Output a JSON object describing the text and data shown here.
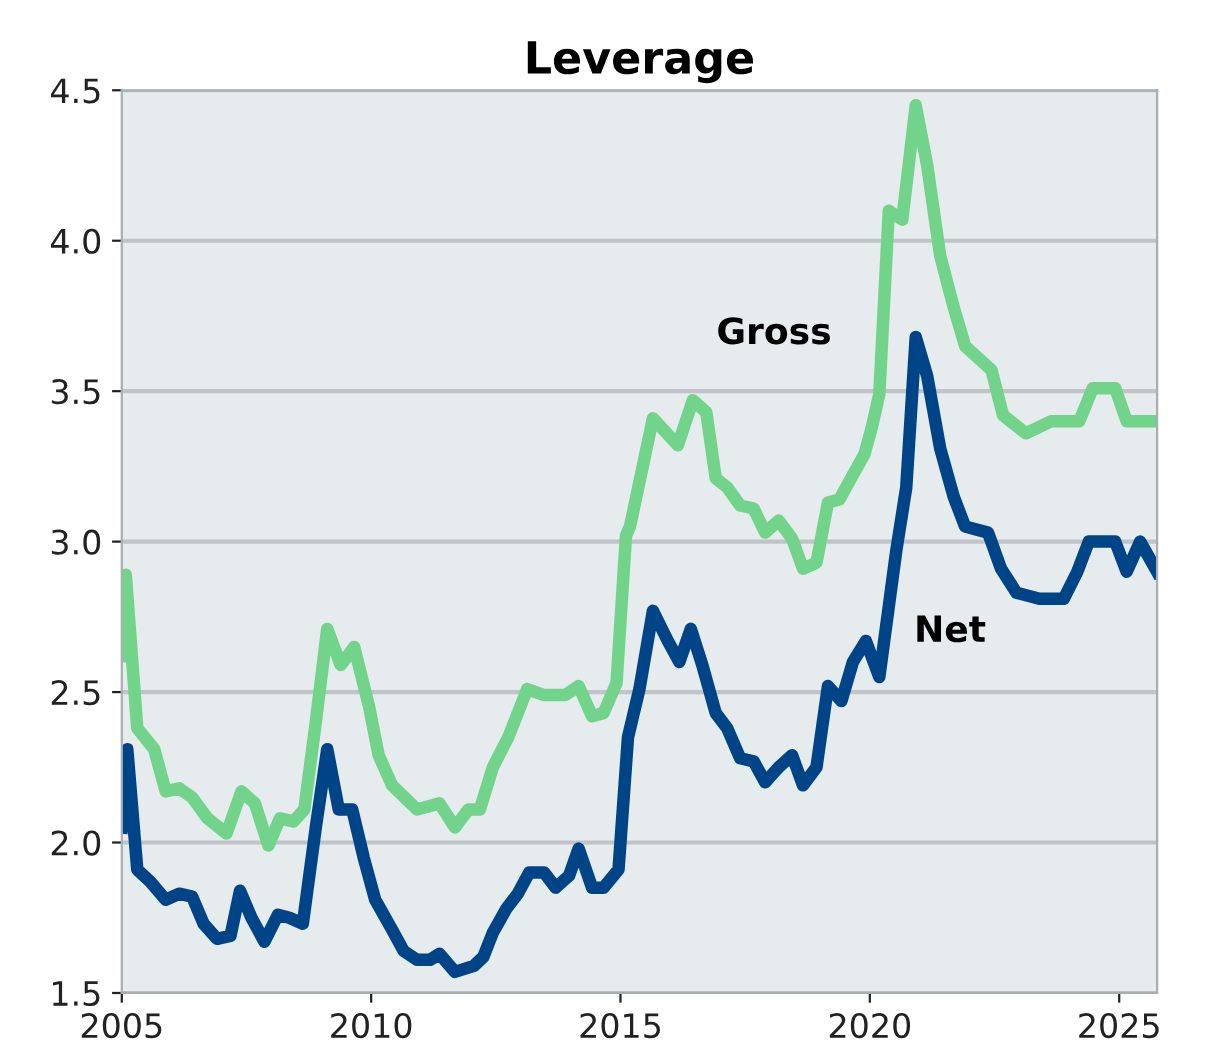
{
  "chart_data": {
    "type": "line",
    "title": "Leverage",
    "xlim": [
      2005,
      2025.76
    ],
    "xticks": [
      2005,
      2010,
      2015,
      2020,
      2025
    ],
    "ylim": [
      1.5,
      4.5
    ],
    "yticks": [
      1.5,
      {
        "value": 2,
        "label": "2.0"
      },
      2.5,
      {
        "value": 3,
        "label": "3.0"
      },
      3.5,
      {
        "value": 4,
        "label": "4.0"
      },
      4.5
    ],
    "grid": "y",
    "legend": false,
    "marker": "none",
    "line_style": "solid",
    "series": [
      {
        "name": "Gross",
        "color": "#72d48a",
        "x": [
          2005.0,
          2005.08,
          2005.31,
          2005.65,
          2005.88,
          2006.15,
          2006.41,
          2006.72,
          2007.1,
          2007.4,
          2007.67,
          2007.94,
          2008.17,
          2008.44,
          2008.66,
          2008.89,
          2009.12,
          2009.39,
          2009.66,
          2009.96,
          2010.15,
          2010.42,
          2010.92,
          2011.37,
          2011.68,
          2011.95,
          2012.18,
          2012.44,
          2012.75,
          2013.13,
          2013.47,
          2013.89,
          2014.16,
          2014.43,
          2014.66,
          2014.92,
          2015.11,
          2015.19,
          2015.65,
          2016.15,
          2016.45,
          2016.72,
          2016.91,
          2017.14,
          2017.4,
          2017.67,
          2017.9,
          2018.17,
          2018.44,
          2018.66,
          2018.93,
          2019.16,
          2019.39,
          2019.62,
          2019.89,
          2020.04,
          2020.19,
          2020.38,
          2020.65,
          2020.92,
          2021.15,
          2021.41,
          2021.68,
          2021.91,
          2022.44,
          2022.67,
          2023.13,
          2023.63,
          2024.2,
          2024.47,
          2024.92,
          2025.15,
          2025.76
        ],
        "values": [
          2.62,
          2.89,
          2.38,
          2.31,
          2.17,
          2.18,
          2.15,
          2.08,
          2.03,
          2.17,
          2.13,
          1.99,
          2.08,
          2.07,
          2.11,
          2.4,
          2.71,
          2.59,
          2.65,
          2.45,
          2.29,
          2.19,
          2.11,
          2.13,
          2.05,
          2.11,
          2.11,
          2.25,
          2.35,
          2.51,
          2.49,
          2.49,
          2.52,
          2.42,
          2.43,
          2.53,
          3.02,
          3.05,
          3.41,
          3.32,
          3.47,
          3.43,
          3.21,
          3.18,
          3.12,
          3.11,
          3.03,
          3.07,
          3.01,
          2.91,
          2.93,
          3.13,
          3.14,
          3.21,
          3.29,
          3.38,
          3.49,
          4.1,
          4.07,
          4.45,
          4.25,
          3.95,
          3.78,
          3.65,
          3.57,
          3.42,
          3.36,
          3.4,
          3.4,
          3.51,
          3.51,
          3.4,
          3.4
        ]
      },
      {
        "name": "Net",
        "color": "#004488",
        "x": [
          2005.0,
          2005.11,
          2005.31,
          2005.57,
          2005.88,
          2006.15,
          2006.41,
          2006.64,
          2006.91,
          2007.18,
          2007.37,
          2007.6,
          2007.86,
          2008.13,
          2008.36,
          2008.63,
          2008.89,
          2009.12,
          2009.35,
          2009.62,
          2009.85,
          2010.08,
          2010.42,
          2010.65,
          2010.92,
          2011.18,
          2011.37,
          2011.68,
          2012.06,
          2012.25,
          2012.44,
          2012.71,
          2012.94,
          2013.17,
          2013.47,
          2013.7,
          2013.97,
          2014.16,
          2014.43,
          2014.66,
          2014.96,
          2015.15,
          2015.38,
          2015.65,
          2015.95,
          2016.18,
          2016.41,
          2016.64,
          2016.91,
          2017.14,
          2017.4,
          2017.67,
          2017.9,
          2018.17,
          2018.44,
          2018.66,
          2018.93,
          2019.16,
          2019.43,
          2019.66,
          2019.92,
          2020.19,
          2020.53,
          2020.73,
          2020.92,
          2021.15,
          2021.41,
          2021.68,
          2021.91,
          2022.37,
          2022.63,
          2022.94,
          2023.4,
          2023.89,
          2024.16,
          2024.39,
          2024.92,
          2025.15,
          2025.42,
          2025.76
        ],
        "values": [
          2.05,
          2.31,
          1.91,
          1.87,
          1.81,
          1.83,
          1.82,
          1.73,
          1.68,
          1.69,
          1.84,
          1.75,
          1.67,
          1.76,
          1.75,
          1.73,
          2.05,
          2.31,
          2.11,
          2.11,
          1.95,
          1.81,
          1.71,
          1.64,
          1.61,
          1.61,
          1.63,
          1.57,
          1.59,
          1.62,
          1.7,
          1.78,
          1.83,
          1.9,
          1.9,
          1.85,
          1.89,
          1.98,
          1.85,
          1.85,
          1.91,
          2.35,
          2.51,
          2.77,
          2.67,
          2.6,
          2.71,
          2.59,
          2.43,
          2.38,
          2.28,
          2.27,
          2.2,
          2.25,
          2.29,
          2.19,
          2.25,
          2.52,
          2.47,
          2.6,
          2.67,
          2.55,
          2.97,
          3.18,
          3.68,
          3.55,
          3.31,
          3.15,
          3.05,
          3.03,
          2.91,
          2.83,
          2.81,
          2.81,
          2.9,
          3.0,
          3.0,
          2.9,
          3.0,
          2.9
        ]
      }
    ]
  }
}
